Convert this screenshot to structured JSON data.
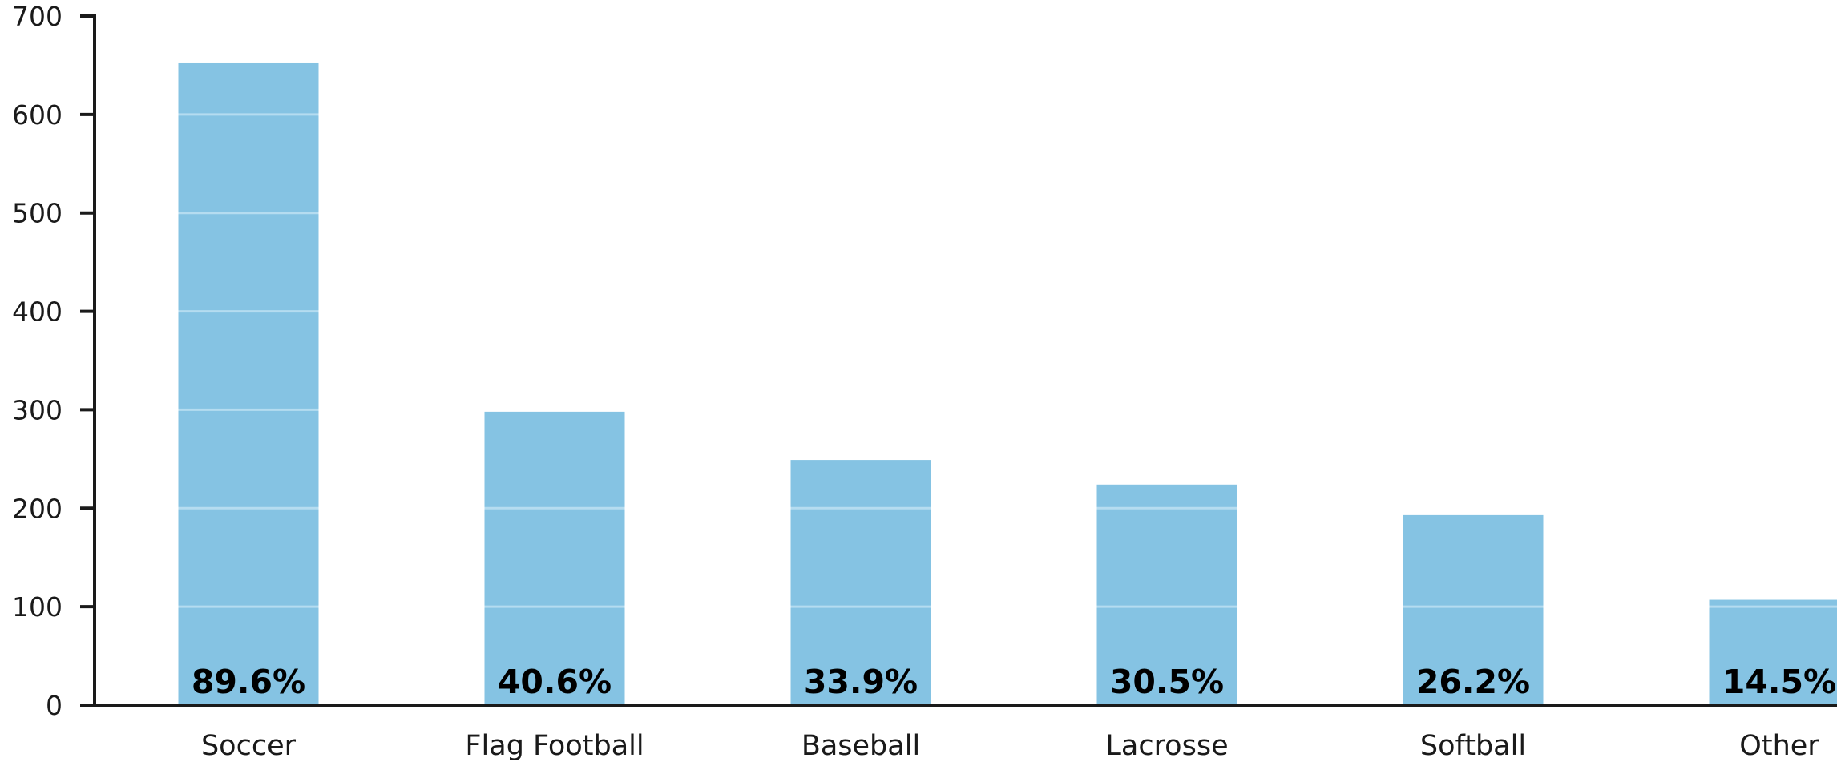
{
  "chart_data": {
    "type": "bar",
    "categories": [
      "Soccer",
      "Flag Football",
      "Baseball",
      "Lacrosse",
      "Softball",
      "Other"
    ],
    "values": [
      652,
      298,
      249,
      224,
      193,
      107
    ],
    "data_labels": [
      "89.6%",
      "40.6%",
      "33.9%",
      "30.5%",
      "26.2%",
      "14.5%"
    ],
    "y_ticks": [
      "0",
      "100",
      "200",
      "300",
      "400",
      "500",
      "600",
      "700"
    ],
    "ylim": [
      0,
      700
    ],
    "bar_color": "#85c3e3",
    "grid_color": "#b5dcf0",
    "axis_color": "#1a1a1a",
    "grid": true,
    "title": "",
    "xlabel": "",
    "ylabel": ""
  }
}
